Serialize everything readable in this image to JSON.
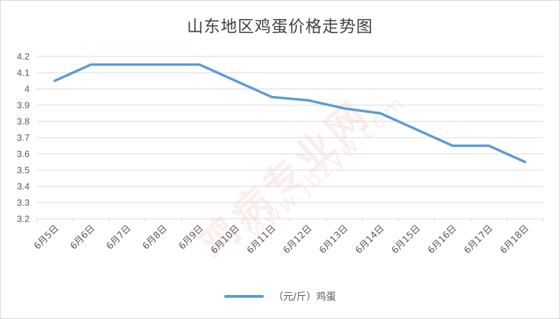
{
  "chart_data": {
    "type": "line",
    "title": "山东地区鸡蛋价格走势图",
    "categories": [
      "6月5日",
      "6月6日",
      "6月7日",
      "6月8日",
      "6月9日",
      "6月10日",
      "6月11日",
      "6月12日",
      "6月13日",
      "6月14日",
      "6月15日",
      "6月16日",
      "6月17日",
      "6月18日"
    ],
    "series": [
      {
        "name": "（元/斤）鸡蛋",
        "values": [
          4.05,
          4.15,
          4.15,
          4.15,
          4.15,
          4.05,
          3.95,
          3.93,
          3.88,
          3.85,
          3.75,
          3.65,
          3.65,
          3.55
        ]
      }
    ],
    "yticks": [
      "4.2",
      "4.1",
      "4",
      "3.9",
      "3.8",
      "3.7",
      "3.6",
      "3.5",
      "3.4",
      "3.3",
      "3.2"
    ],
    "ylim": [
      3.2,
      4.2
    ],
    "grid": true,
    "legend": "bottom",
    "line_color": "#5b9bd5",
    "xlabel": "",
    "ylabel": ""
  },
  "watermark": {
    "text": "鸡病专业网",
    "url": "www.jbzyw.com"
  }
}
